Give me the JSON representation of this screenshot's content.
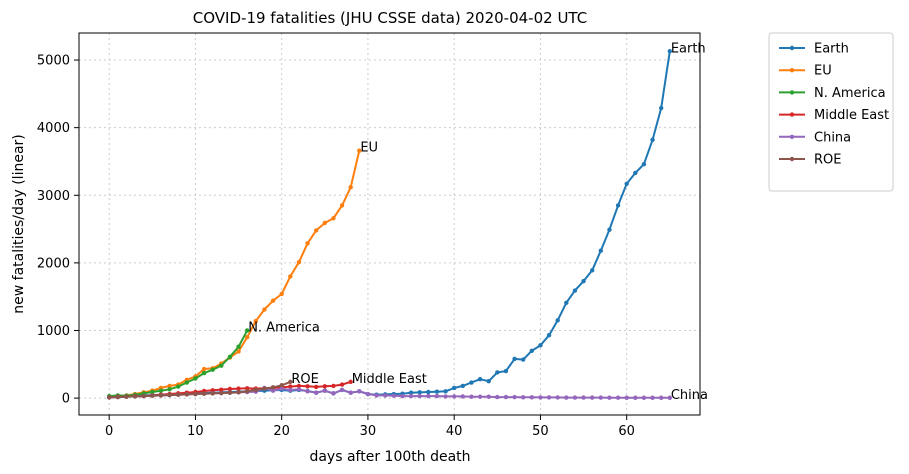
{
  "chart_data": {
    "type": "line",
    "title": "COVID-19 fatalities (JHU CSSE data) 2020-04-02 UTC",
    "xlabel": "days after 100th death",
    "ylabel": "new fatalities/day (linear)",
    "xlim": [
      -3.5,
      68.5
    ],
    "ylim": [
      -250,
      5400
    ],
    "xticks": [
      0,
      10,
      20,
      30,
      40,
      50,
      60
    ],
    "yticks": [
      0,
      1000,
      2000,
      3000,
      4000,
      5000
    ],
    "grid": true,
    "legend_position": "outside-top-right",
    "series": [
      {
        "name": "Earth",
        "label": "Earth",
        "color": "#1f77b4",
        "x": [
          0,
          1,
          2,
          3,
          4,
          5,
          6,
          7,
          8,
          9,
          10,
          11,
          12,
          13,
          14,
          15,
          16,
          17,
          18,
          19,
          20,
          21,
          22,
          23,
          24,
          25,
          26,
          27,
          28,
          29,
          30,
          31,
          32,
          33,
          34,
          35,
          36,
          37,
          38,
          39,
          40,
          41,
          42,
          43,
          44,
          45,
          46,
          47,
          48,
          49,
          50,
          51,
          52,
          53,
          54,
          55,
          56,
          57,
          58,
          59,
          60,
          61,
          62,
          63,
          64,
          65
        ],
        "y": [
          20,
          30,
          25,
          35,
          40,
          45,
          50,
          55,
          60,
          65,
          70,
          75,
          80,
          85,
          90,
          95,
          100,
          105,
          110,
          115,
          120,
          110,
          120,
          105,
          80,
          110,
          70,
          120,
          80,
          100,
          60,
          50,
          55,
          60,
          65,
          80,
          85,
          90,
          95,
          100,
          150,
          180,
          230,
          280,
          250,
          380,
          400,
          580,
          570,
          700,
          780,
          930,
          1150,
          1410,
          1590,
          1730,
          1890,
          2180,
          2490,
          2850,
          3170,
          3330,
          3460,
          3820,
          4290,
          5130
        ]
      },
      {
        "name": "EU",
        "label": "EU",
        "color": "#ff7f0e",
        "x": [
          0,
          1,
          2,
          3,
          4,
          5,
          6,
          7,
          8,
          9,
          10,
          11,
          12,
          13,
          14,
          15,
          16,
          17,
          18,
          19,
          20,
          21,
          22,
          23,
          24,
          25,
          26,
          27,
          28,
          29
        ],
        "y": [
          20,
          25,
          40,
          60,
          85,
          110,
          150,
          180,
          200,
          270,
          320,
          430,
          440,
          510,
          600,
          690,
          900,
          1140,
          1310,
          1440,
          1540,
          1800,
          2010,
          2290,
          2480,
          2590,
          2660,
          2850,
          3120,
          3660
        ]
      },
      {
        "name": "N. America",
        "label": "N. America",
        "color": "#2ca02c",
        "x": [
          0,
          1,
          2,
          3,
          4,
          5,
          6,
          7,
          8,
          9,
          10,
          11,
          12,
          13,
          14,
          15,
          16
        ],
        "y": [
          30,
          40,
          35,
          50,
          70,
          90,
          110,
          130,
          170,
          230,
          290,
          370,
          420,
          480,
          610,
          760,
          1000
        ]
      },
      {
        "name": "Middle East",
        "label": "Middle East",
        "color": "#d62728",
        "x": [
          0,
          1,
          2,
          3,
          4,
          5,
          6,
          7,
          8,
          9,
          10,
          11,
          12,
          13,
          14,
          15,
          16,
          17,
          18,
          19,
          20,
          21,
          22,
          23,
          24,
          25,
          26,
          27,
          28
        ],
        "y": [
          10,
          20,
          20,
          30,
          30,
          40,
          50,
          60,
          70,
          80,
          90,
          105,
          115,
          125,
          135,
          140,
          145,
          140,
          145,
          150,
          160,
          170,
          180,
          175,
          165,
          175,
          180,
          200,
          240
        ]
      },
      {
        "name": "China",
        "label": "China",
        "color": "#9467bd",
        "x": [
          0,
          1,
          2,
          3,
          4,
          5,
          6,
          7,
          8,
          9,
          10,
          11,
          12,
          13,
          14,
          15,
          16,
          17,
          18,
          19,
          20,
          21,
          22,
          23,
          24,
          25,
          26,
          27,
          28,
          29,
          30,
          31,
          32,
          33,
          34,
          35,
          36,
          37,
          38,
          39,
          40,
          41,
          42,
          43,
          44,
          45,
          46,
          47,
          48,
          49,
          50,
          51,
          52,
          53,
          54,
          55,
          56,
          57,
          58,
          59,
          60,
          61,
          62,
          63,
          64,
          65
        ],
        "y": [
          10,
          15,
          20,
          25,
          30,
          35,
          40,
          45,
          50,
          55,
          60,
          65,
          70,
          75,
          80,
          85,
          90,
          95,
          150,
          110,
          140,
          120,
          130,
          100,
          80,
          110,
          70,
          120,
          80,
          100,
          60,
          40,
          40,
          35,
          30,
          30,
          30,
          30,
          30,
          25,
          25,
          25,
          20,
          20,
          20,
          15,
          15,
          15,
          12,
          12,
          10,
          10,
          10,
          8,
          8,
          8,
          7,
          7,
          6,
          6,
          5,
          5,
          5,
          5,
          5,
          5
        ]
      },
      {
        "name": "ROE",
        "label": "ROE",
        "color": "#8c564b",
        "x": [
          0,
          1,
          2,
          3,
          4,
          5,
          6,
          7,
          8,
          9,
          10,
          11,
          12,
          13,
          14,
          15,
          16,
          17,
          18,
          19,
          20,
          21
        ],
        "y": [
          10,
          15,
          20,
          25,
          30,
          35,
          40,
          45,
          50,
          55,
          60,
          65,
          70,
          75,
          80,
          85,
          100,
          120,
          140,
          160,
          190,
          240
        ]
      }
    ]
  }
}
